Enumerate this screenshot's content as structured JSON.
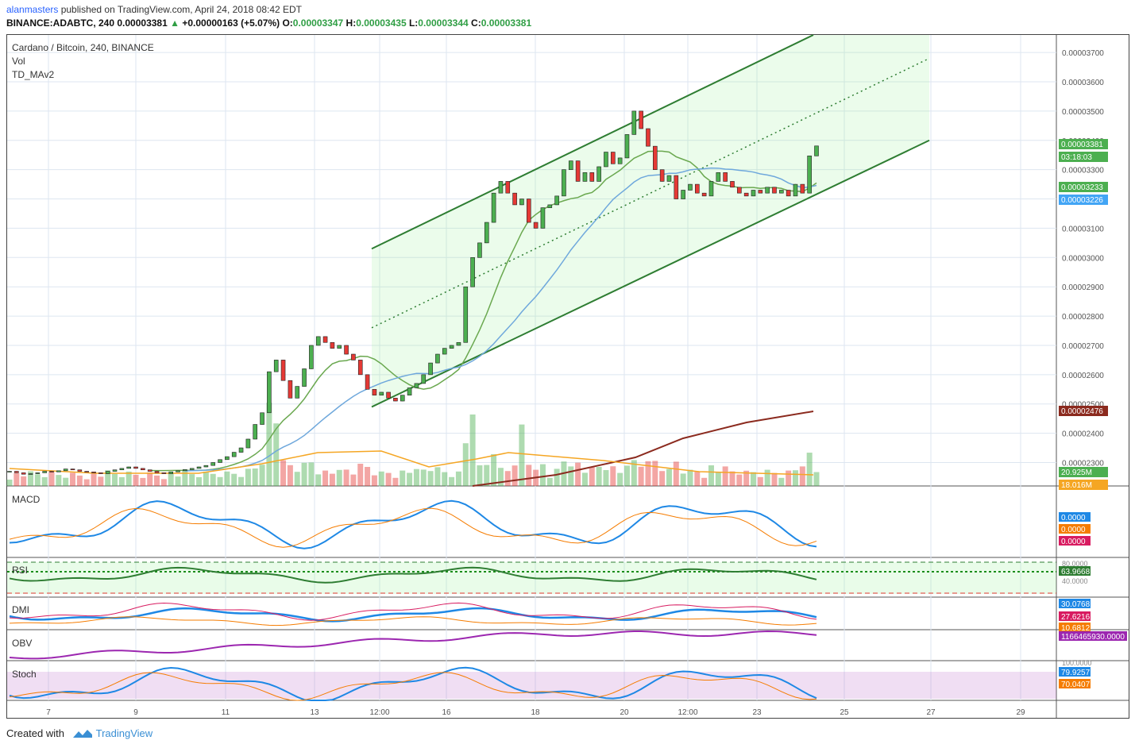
{
  "header": {
    "user": "alanmasters",
    "published": " published on TradingView.com, April 24, 2018 08:42 EDT",
    "symbol": "BINANCE:ADABTC, 240",
    "last": "0.00003381",
    "change": "+0.00000163 (+5.07%)",
    "o_label": "O:",
    "o": "0.00003347",
    "h_label": "H:",
    "h": "0.00003435",
    "l_label": "L:",
    "l": "0.00003344",
    "c_label": "C:",
    "c": "0.00003381"
  },
  "legend": {
    "title": "Cardano / Bitcoin, 240, BINANCE",
    "vol": "Vol",
    "td": "TD_MAv2"
  },
  "panes": {
    "macd": "MACD",
    "rsi": "RSI",
    "dmi": "DMI",
    "obv": "OBV",
    "stoch": "Stoch"
  },
  "footer": {
    "created": "Created with",
    "brand": "TradingView"
  },
  "colors": {
    "up": "#4caf50",
    "down": "#e53935",
    "blue": "#42a5f5",
    "orange": "#f5a623",
    "maroon": "#8b2a1e",
    "channel": "#2e7d32"
  },
  "chart_data": [
    {
      "type": "candlestick",
      "title": "Cardano / Bitcoin, 240, BINANCE",
      "ylim": [
        2.22e-05,
        3.76e-05
      ],
      "y_ticks": [
        "0.00002300",
        "0.00002400",
        "0.00002500",
        "0.00002600",
        "0.00002700",
        "0.00002800",
        "0.00002900",
        "0.00003000",
        "0.00003100",
        "0.00003200",
        "0.00003300",
        "0.00003400",
        "0.00003500",
        "0.00003600",
        "0.00003700"
      ],
      "x_ticks": [
        "7",
        "9",
        "11",
        "13",
        "12:00",
        "16",
        "18",
        "20",
        "12:00",
        "23",
        "25",
        "27",
        "29"
      ],
      "price_labels": [
        {
          "value": "0.00003381",
          "color": "#4caf50"
        },
        {
          "value": "03:18:03",
          "color": "#4caf50"
        },
        {
          "value": "0.00003233",
          "color": "#4caf50"
        },
        {
          "value": "0.00003226",
          "color": "#42a5f5"
        },
        {
          "value": "0.00002476",
          "color": "#8b2a1e"
        },
        {
          "value": "20.925M",
          "color": "#4caf50"
        },
        {
          "value": "18.016M",
          "color": "#f5a623"
        }
      ],
      "closes": [
        2270,
        2265,
        2260,
        2262,
        2265,
        2270,
        2268,
        2272,
        2278,
        2275,
        2270,
        2268,
        2265,
        2262,
        2270,
        2275,
        2280,
        2285,
        2280,
        2275,
        2270,
        2265,
        2262,
        2268,
        2272,
        2276,
        2280,
        2285,
        2290,
        2300,
        2310,
        2320,
        2335,
        2350,
        2380,
        2430,
        2470,
        2610,
        2650,
        2580,
        2520,
        2560,
        2620,
        2700,
        2730,
        2710,
        2690,
        2700,
        2670,
        2650,
        2600,
        2550,
        2530,
        2540,
        2520,
        2510,
        2530,
        2555,
        2570,
        2600,
        2640,
        2670,
        2690,
        2700,
        2710,
        2900,
        3000,
        3050,
        3120,
        3220,
        3260,
        3220,
        3180,
        3200,
        3120,
        3100,
        3170,
        3180,
        3210,
        3300,
        3330,
        3260,
        3290,
        3260,
        3310,
        3360,
        3320,
        3340,
        3420,
        3500,
        3440,
        3380,
        3300,
        3260,
        3280,
        3200,
        3230,
        3250,
        3220,
        3210,
        3260,
        3290,
        3260,
        3240,
        3220,
        3210,
        3230,
        3220,
        3240,
        3220,
        3230,
        3210,
        3250,
        3220,
        3347,
        3381
      ],
      "channel": {
        "upper_start": [
          0.02958,
          3.03e-05
        ],
        "upper_end": [
          1.0,
          3.76e-05
        ],
        "lower_start": [
          0.02958,
          2.49e-05
        ],
        "lower_end": [
          1.0,
          3.4e-05
        ]
      }
    },
    {
      "type": "line",
      "title": "MACD",
      "value_labels": [
        {
          "value": "0.0000",
          "color": "#1e88e5"
        },
        {
          "value": "0.0000",
          "color": "#f57c00"
        },
        {
          "value": "0.0000",
          "color": "#d81b60"
        }
      ]
    },
    {
      "type": "line",
      "title": "RSI",
      "y_ticks": [
        "80.0000",
        "40.0000"
      ],
      "value_labels": [
        {
          "value": "63.9668",
          "color": "#2e7d32"
        }
      ]
    },
    {
      "type": "line",
      "title": "DMI",
      "value_labels": [
        {
          "value": "30.0768",
          "color": "#1e88e5"
        },
        {
          "value": "27.6216",
          "color": "#d81b60"
        },
        {
          "value": "10.6812",
          "color": "#f57c00"
        }
      ]
    },
    {
      "type": "line",
      "title": "OBV",
      "value_labels": [
        {
          "value": "1166465930.0000",
          "color": "#9c27b0"
        }
      ]
    },
    {
      "type": "line",
      "title": "Stoch",
      "y_ticks": [
        "100.0000"
      ],
      "value_labels": [
        {
          "value": "79.9257",
          "color": "#1e88e5"
        },
        {
          "value": "70.0407",
          "color": "#f57c00"
        }
      ]
    }
  ]
}
